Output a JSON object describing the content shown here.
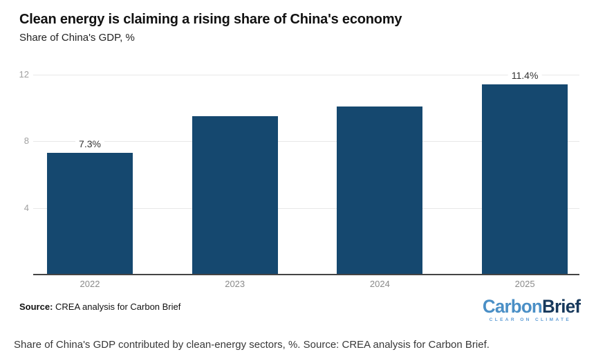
{
  "header": {
    "title": "Clean energy is claiming a rising share of China's economy",
    "subtitle": "Share of China's GDP, %"
  },
  "chart_data": {
    "type": "bar",
    "categories": [
      "2022",
      "2023",
      "2024",
      "2025"
    ],
    "values": [
      7.3,
      9.5,
      10.1,
      11.4
    ],
    "bar_labels": [
      "7.3%",
      "",
      "",
      "11.4%"
    ],
    "title": "Clean energy is claiming a rising share of China's economy",
    "subtitle": "Share of China's GDP, %",
    "xlabel": "",
    "ylabel": "Share of China's GDP, %",
    "ylim": [
      0,
      12.75
    ],
    "yticks": [
      4,
      8,
      12
    ],
    "grid": true,
    "legend": false,
    "bar_color": "#15486F"
  },
  "footer": {
    "source_label": "Source:",
    "source_text": " CREA analysis for Carbon Brief",
    "logo": {
      "part1": "Carbon",
      "part2": "Brief",
      "tagline": "CLEAR ON CLIMATE"
    }
  },
  "caption": "Share of China's GDP contributed by clean-energy sectors, %. Source: CREA analysis for Carbon Brief.",
  "colors": {
    "bar": "#15486F",
    "grid": "#E8E8E8",
    "axis": "#444444",
    "y_tick_label": "#A0A0A0",
    "x_tick_label": "#8A8A8A",
    "data_label": "#333333",
    "logo_light_blue": "#4A8FC6",
    "logo_dark_blue": "#17395C",
    "background": "#FFFFFF"
  }
}
